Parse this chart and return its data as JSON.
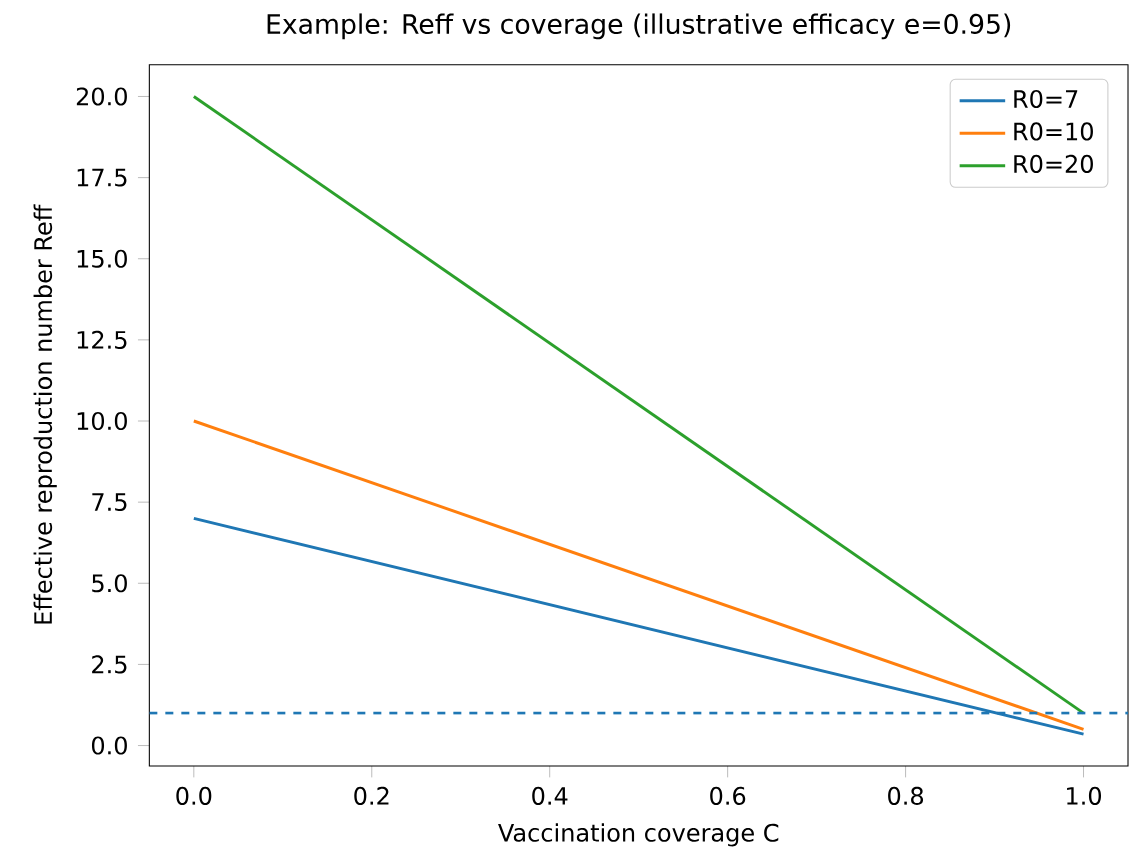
{
  "chart_data": {
    "type": "line",
    "title": "Example: Reff vs coverage (illustrative efficacy e=0.95)",
    "xlabel": "Vaccination coverage C",
    "ylabel": "Effective reproduction number Reff",
    "x": [
      0,
      1
    ],
    "series": [
      {
        "name": "R0=7",
        "color": "#1f77b4",
        "values": [
          7,
          0.35
        ]
      },
      {
        "name": "R0=10",
        "color": "#ff7f0e",
        "values": [
          10,
          0.5
        ]
      },
      {
        "name": "R0=20",
        "color": "#2ca02c",
        "values": [
          20,
          1.0
        ]
      }
    ],
    "xlim": [
      -0.05,
      1.05
    ],
    "ylim": [
      -0.63,
      20.98
    ],
    "xticks": [
      {
        "value": 0,
        "label": "0.0"
      },
      {
        "value": 0.2,
        "label": "0.2"
      },
      {
        "value": 0.4,
        "label": "0.4"
      },
      {
        "value": 0.6,
        "label": "0.6"
      },
      {
        "value": 0.8,
        "label": "0.8"
      },
      {
        "value": 1,
        "label": "1.0"
      }
    ],
    "yticks": [
      {
        "value": 0,
        "label": "0.0"
      },
      {
        "value": 2.5,
        "label": "2.5"
      },
      {
        "value": 5,
        "label": "5.0"
      },
      {
        "value": 7.5,
        "label": "7.5"
      },
      {
        "value": 10,
        "label": "10.0"
      },
      {
        "value": 12.5,
        "label": "12.5"
      },
      {
        "value": 15,
        "label": "15.0"
      },
      {
        "value": 17.5,
        "label": "17.5"
      },
      {
        "value": 20,
        "label": "20.0"
      }
    ],
    "ref_lines": [
      {
        "axis": "y",
        "value": 1,
        "color": "#1f77b4",
        "line_style": "dashed"
      }
    ],
    "legend": "top right",
    "grid": false,
    "line_style": "solid"
  }
}
